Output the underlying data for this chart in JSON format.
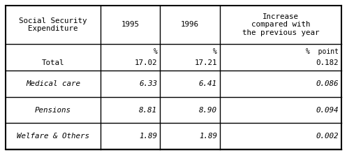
{
  "col_headers": [
    "Social Security\nExpenditure",
    "1995",
    "1996",
    "Increase\ncompared with\nthe previous year"
  ],
  "unit_row": [
    "",
    "%",
    "%",
    "%  point"
  ],
  "rows": [
    [
      "Total",
      "17.02",
      "17.21",
      "0.182"
    ],
    [
      "Medical care",
      "6.33",
      "6.41",
      "0.086"
    ],
    [
      "Pensions",
      "8.81",
      "8.90",
      "0.094"
    ],
    [
      "Welfare & Others",
      "1.89",
      "1.89",
      "0.002"
    ]
  ],
  "italic_rows": [
    1,
    2,
    3
  ],
  "bg_color": "#ffffff",
  "border_color": "#000000",
  "font_color": "#000000",
  "header_font_size": 7.8,
  "cell_font_size": 7.8,
  "unit_font_size": 7.0
}
